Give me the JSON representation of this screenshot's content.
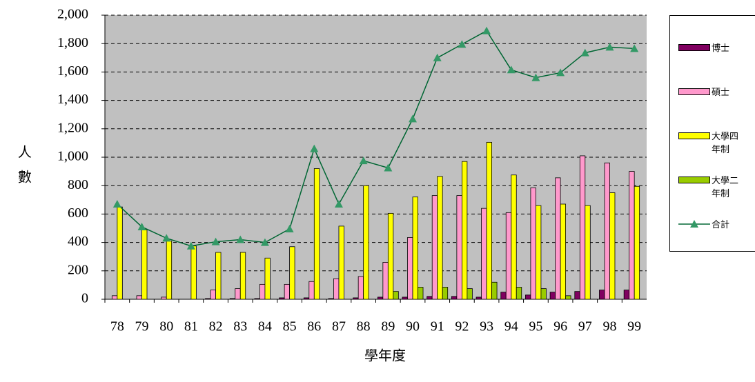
{
  "chart_data": {
    "type": "bar",
    "y_label": "人數",
    "x_label": "學年度",
    "categories": [
      "78",
      "79",
      "80",
      "81",
      "82",
      "83",
      "84",
      "85",
      "86",
      "87",
      "88",
      "89",
      "90",
      "91",
      "92",
      "93",
      "94",
      "95",
      "96",
      "97",
      "98",
      "99"
    ],
    "series": [
      {
        "name": "博士",
        "color": "#800060",
        "values": [
          0,
          0,
          0,
          0,
          5,
          5,
          5,
          10,
          10,
          5,
          10,
          15,
          15,
          20,
          20,
          15,
          50,
          30,
          50,
          55,
          65,
          65
        ]
      },
      {
        "name": "碩士",
        "color": "#ff99cc",
        "values": [
          25,
          25,
          15,
          0,
          65,
          75,
          105,
          105,
          125,
          145,
          160,
          260,
          435,
          730,
          730,
          640,
          610,
          785,
          855,
          1010,
          960,
          900
        ]
      },
      {
        "name": "大學四年制",
        "color": "#ffff00",
        "values": [
          650,
          490,
          410,
          375,
          330,
          330,
          290,
          370,
          920,
          515,
          800,
          605,
          720,
          865,
          970,
          1105,
          875,
          660,
          670,
          660,
          750,
          795
        ]
      },
      {
        "name": "大學二年制",
        "color": "#99cc00",
        "values": [
          0,
          0,
          0,
          0,
          0,
          0,
          0,
          0,
          0,
          0,
          0,
          55,
          85,
          85,
          75,
          120,
          85,
          75,
          25,
          0,
          0,
          0
        ]
      },
      {
        "name": "合計",
        "type": "line",
        "color": "#006633",
        "marker_color": "#339966",
        "values": [
          670,
          510,
          430,
          375,
          405,
          420,
          400,
          495,
          1060,
          670,
          975,
          925,
          1270,
          1700,
          1795,
          1890,
          1615,
          1560,
          1595,
          1735,
          1775,
          1765
        ]
      }
    ],
    "ylim": [
      0,
      2000
    ],
    "yticks": [
      0,
      200,
      400,
      600,
      800,
      {
        "value": 1000,
        "label": "1,000"
      },
      {
        "value": 1200,
        "label": "1,200"
      },
      {
        "value": 1400,
        "label": "1,400"
      },
      {
        "value": 1600,
        "label": "1,600"
      },
      {
        "value": 1800,
        "label": "1,800"
      },
      {
        "value": 2000,
        "label": "2,000"
      }
    ],
    "grid": true,
    "plot_background": "#c0c0c0",
    "legend": "right"
  }
}
